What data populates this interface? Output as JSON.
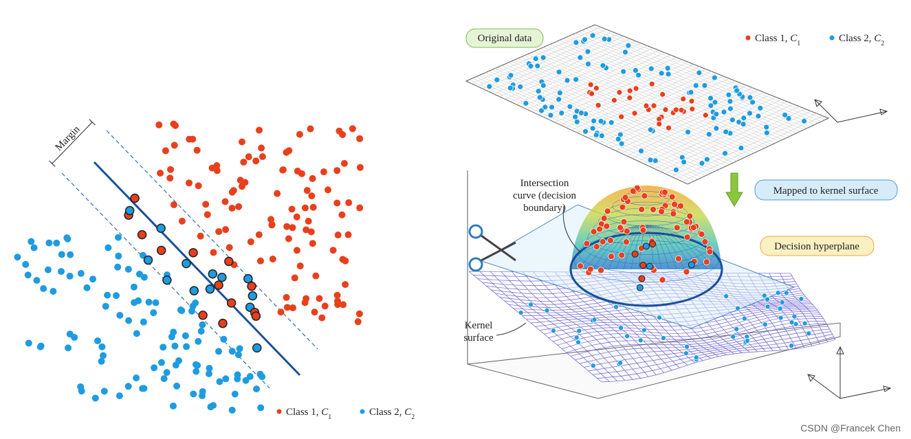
{
  "left_panel": {
    "margin_label": "Margin",
    "legend": [
      {
        "text": "Class 1, ",
        "symbol": "C",
        "subscript": "1",
        "color": "#e8401c"
      },
      {
        "text": "Class 2, ",
        "symbol": "C",
        "subscript": "2",
        "color": "#1f9be0"
      }
    ]
  },
  "right_panel": {
    "original_data": "Original data",
    "mapped_label": "Mapped to kernel surface",
    "hyperplane_label": "Decision hyperplane",
    "intersection_label": [
      "Intersection",
      "curve (decision",
      "boundary)"
    ],
    "kernel_label": [
      "Kernel",
      "surface"
    ],
    "legend": [
      {
        "text": "Class 1, ",
        "symbol": "C",
        "subscript": "1",
        "color": "#e8401c"
      },
      {
        "text": "Class 2, ",
        "symbol": "C",
        "subscript": "2",
        "color": "#1f9be0"
      }
    ]
  },
  "watermark": "CSDN @Francek Chen"
}
